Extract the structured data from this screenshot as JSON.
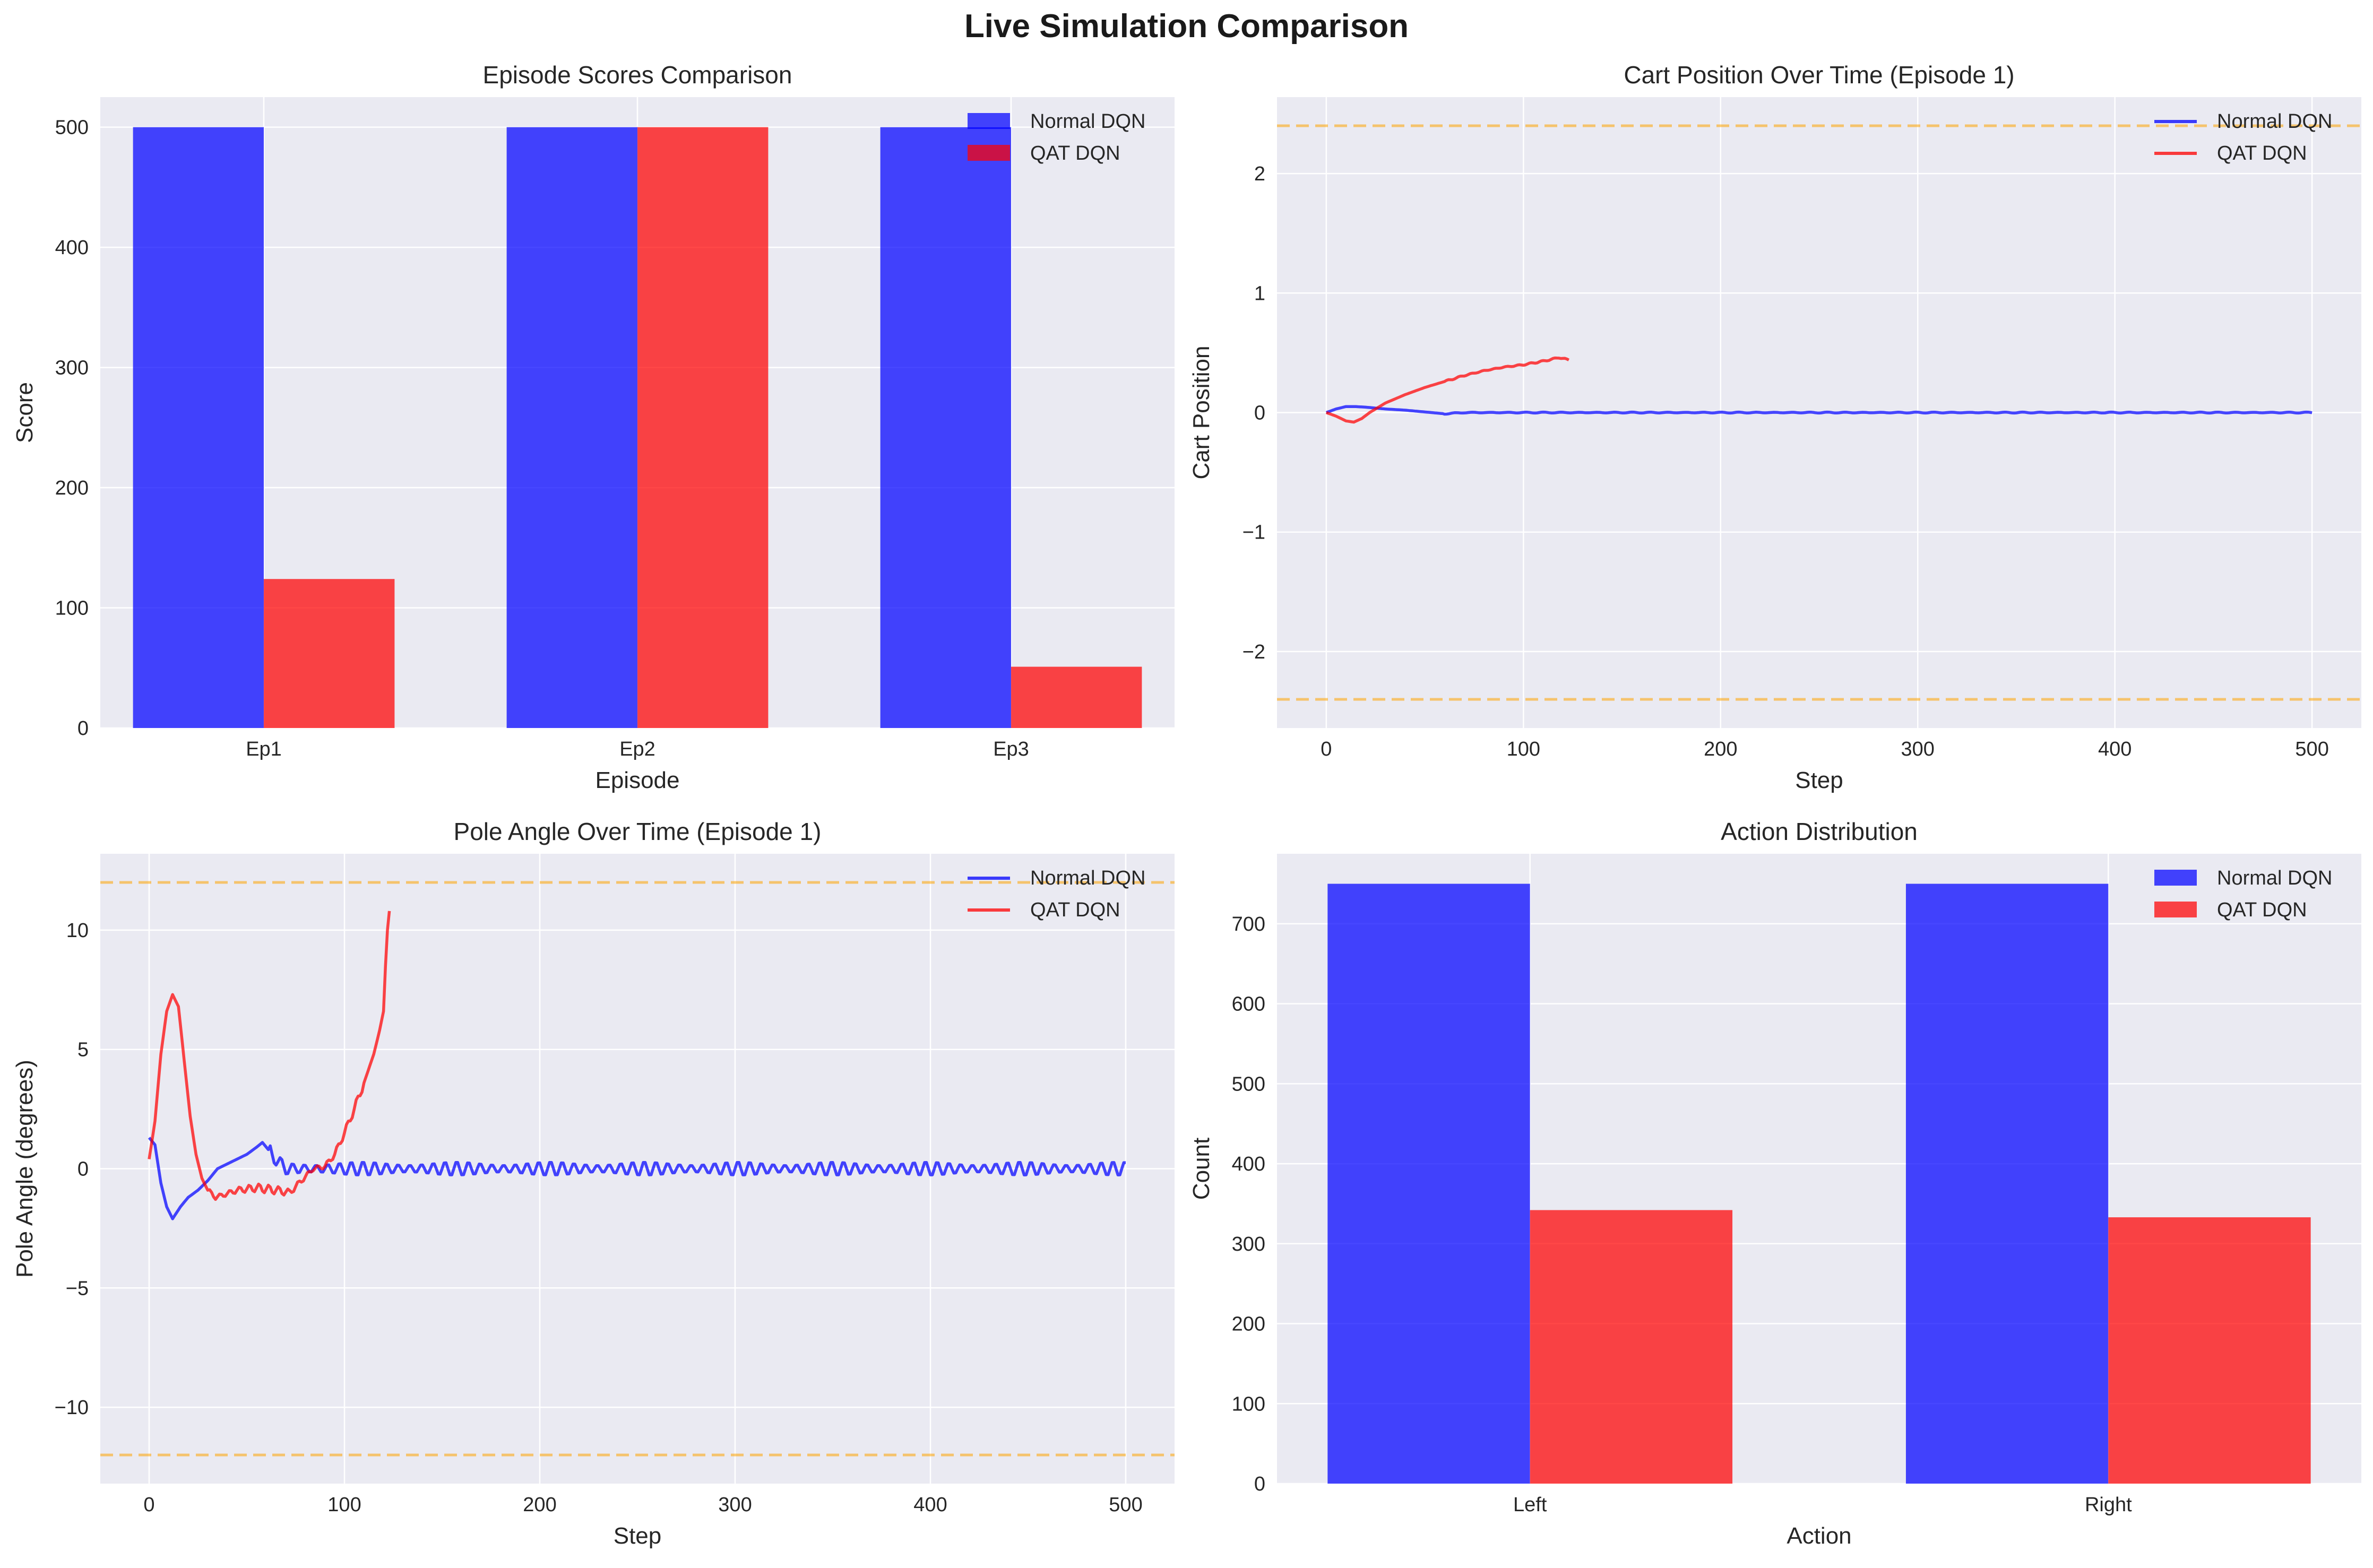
{
  "figure_title": "Live Simulation Comparison",
  "colors": {
    "normal": "#0000ff",
    "qat": "#ff0000",
    "threshold": "#ffa500",
    "axes_bg": "#eaeaf2",
    "grid": "#ffffff"
  },
  "chart_data": [
    {
      "type": "bar",
      "title": "Episode Scores Comparison",
      "xlabel": "Episode",
      "ylabel": "Score",
      "categories": [
        "Ep1",
        "Ep2",
        "Ep3"
      ],
      "series": [
        {
          "name": "Normal DQN",
          "values": [
            500,
            500,
            500
          ]
        },
        {
          "name": "QAT DQN",
          "values": [
            124,
            500,
            51
          ]
        }
      ],
      "ylim": [
        0,
        525
      ],
      "yticks": [
        0,
        100,
        200,
        300,
        400,
        500
      ],
      "legend": "top-right",
      "grid": true
    },
    {
      "type": "line",
      "title": "Cart Position Over Time (Episode 1)",
      "xlabel": "Step",
      "ylabel": "Cart Position",
      "xlim": [
        -25,
        525
      ],
      "ylim": [
        -2.64,
        2.64
      ],
      "xticks": [
        0,
        100,
        200,
        300,
        400,
        500
      ],
      "yticks": [
        -2,
        -1,
        0,
        1,
        2
      ],
      "ytick_labels": [
        "−2",
        "−1",
        "0",
        "1",
        "2"
      ],
      "thresholds": [
        2.4,
        -2.4
      ],
      "series": [
        {
          "name": "Normal DQN",
          "points": [
            [
              0,
              0
            ],
            [
              5,
              0.03
            ],
            [
              10,
              0.05
            ],
            [
              15,
              0.05
            ],
            [
              20,
              0.045
            ],
            [
              30,
              0.03
            ],
            [
              40,
              0.02
            ],
            [
              50,
              0.005
            ],
            [
              60,
              -0.01
            ],
            [
              70,
              0.0
            ],
            [
              80,
              0.0
            ],
            [
              100,
              0.0
            ],
            [
              500,
              0.0
            ]
          ],
          "oscillation": {
            "from": 60,
            "to": 500,
            "amplitude": 0.004,
            "period": 9
          }
        },
        {
          "name": "QAT DQN",
          "points": [
            [
              0,
              0
            ],
            [
              5,
              -0.03
            ],
            [
              10,
              -0.07
            ],
            [
              14,
              -0.08
            ],
            [
              18,
              -0.05
            ],
            [
              22,
              0.0
            ],
            [
              30,
              0.08
            ],
            [
              40,
              0.15
            ],
            [
              50,
              0.21
            ],
            [
              60,
              0.26
            ],
            [
              70,
              0.31
            ],
            [
              80,
              0.35
            ],
            [
              90,
              0.38
            ],
            [
              100,
              0.4
            ],
            [
              110,
              0.43
            ],
            [
              118,
              0.46
            ],
            [
              121,
              0.45
            ],
            [
              123,
              0.44
            ]
          ],
          "oscillation": {
            "from": 60,
            "to": 123,
            "amplitude": 0.006,
            "period": 6
          }
        }
      ],
      "legend": "top-right",
      "grid": true
    },
    {
      "type": "line",
      "title": "Pole Angle Over Time (Episode 1)",
      "xlabel": "Step",
      "ylabel": "Pole Angle (degrees)",
      "xlim": [
        -25,
        525
      ],
      "ylim": [
        -13.2,
        13.2
      ],
      "xticks": [
        0,
        100,
        200,
        300,
        400,
        500
      ],
      "yticks": [
        -10,
        -5,
        0,
        5,
        10
      ],
      "ytick_labels": [
        "−10",
        "−5",
        "0",
        "5",
        "10"
      ],
      "thresholds": [
        12,
        -12
      ],
      "series": [
        {
          "name": "Normal DQN",
          "points": [
            [
              0,
              1.3
            ],
            [
              3,
              1.0
            ],
            [
              6,
              -0.6
            ],
            [
              9,
              -1.6
            ],
            [
              12,
              -2.1
            ],
            [
              16,
              -1.6
            ],
            [
              20,
              -1.2
            ],
            [
              25,
              -0.9
            ],
            [
              30,
              -0.5
            ],
            [
              35,
              0.0
            ],
            [
              40,
              0.2
            ],
            [
              45,
              0.4
            ],
            [
              50,
              0.6
            ],
            [
              55,
              0.9
            ],
            [
              58,
              1.1
            ],
            [
              62,
              0.7
            ],
            [
              66,
              0.3
            ],
            [
              70,
              0.0
            ],
            [
              80,
              0.0
            ],
            [
              500,
              0.0
            ]
          ],
          "oscillation": {
            "from": 62,
            "to": 500,
            "amplitude": 0.3,
            "period": 6
          }
        },
        {
          "name": "QAT DQN",
          "points": [
            [
              0,
              0.4
            ],
            [
              3,
              2.0
            ],
            [
              6,
              4.8
            ],
            [
              9,
              6.6
            ],
            [
              12,
              7.3
            ],
            [
              15,
              6.8
            ],
            [
              18,
              4.5
            ],
            [
              21,
              2.2
            ],
            [
              24,
              0.6
            ],
            [
              27,
              -0.4
            ],
            [
              30,
              -0.9
            ],
            [
              34,
              -1.2
            ],
            [
              38,
              -1.1
            ],
            [
              45,
              -0.9
            ],
            [
              55,
              -0.8
            ],
            [
              65,
              -0.9
            ],
            [
              72,
              -1.0
            ],
            [
              78,
              -0.5
            ],
            [
              84,
              0.0
            ],
            [
              90,
              0.1
            ],
            [
              95,
              0.6
            ],
            [
              100,
              1.5
            ],
            [
              105,
              2.5
            ],
            [
              110,
              3.6
            ],
            [
              115,
              4.8
            ],
            [
              118,
              5.8
            ],
            [
              120,
              6.6
            ],
            [
              121,
              8.5
            ],
            [
              122,
              10.0
            ],
            [
              123,
              10.8
            ]
          ],
          "oscillation": {
            "from": 30,
            "to": 110,
            "amplitude": 0.18,
            "period": 5
          }
        }
      ],
      "legend": "top-right",
      "grid": true
    },
    {
      "type": "bar",
      "title": "Action Distribution",
      "xlabel": "Action",
      "ylabel": "Count",
      "categories": [
        "Left",
        "Right"
      ],
      "series": [
        {
          "name": "Normal DQN",
          "values": [
            750,
            750
          ]
        },
        {
          "name": "QAT DQN",
          "values": [
            342,
            333
          ]
        }
      ],
      "ylim": [
        0,
        787.5
      ],
      "yticks": [
        0,
        100,
        200,
        300,
        400,
        500,
        600,
        700
      ],
      "legend": "top-right",
      "grid": true
    }
  ]
}
